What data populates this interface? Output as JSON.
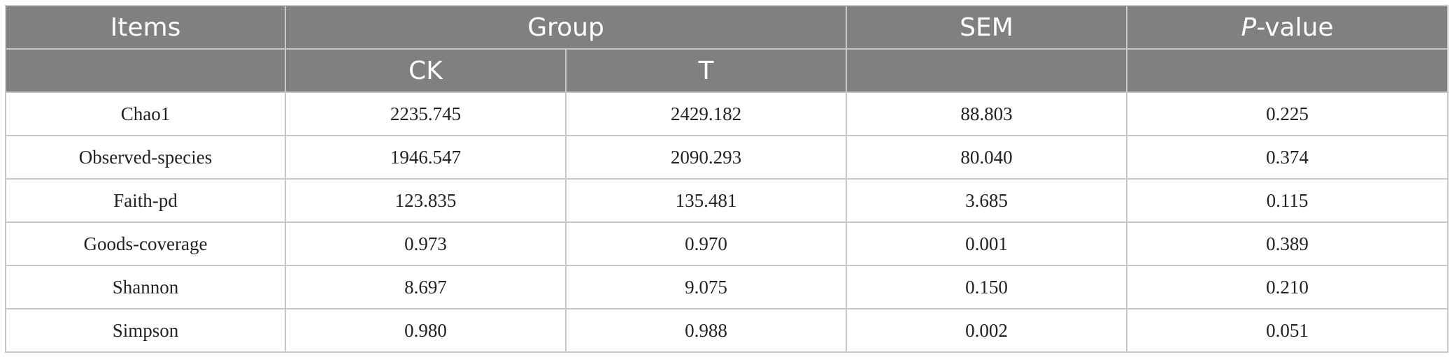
{
  "header": {
    "items": "Items",
    "group": "Group",
    "sem": "SEM",
    "p_italic": "P",
    "p_rest": "-value",
    "ck": "CK",
    "t": "T"
  },
  "rows": [
    {
      "item": "Chao1",
      "ck": "2235.745",
      "t": "2429.182",
      "sem": "88.803",
      "p": "0.225"
    },
    {
      "item": "Observed-species",
      "ck": "1946.547",
      "t": "2090.293",
      "sem": "80.040",
      "p": "0.374"
    },
    {
      "item": "Faith-pd",
      "ck": "123.835",
      "t": "135.481",
      "sem": "3.685",
      "p": "0.115"
    },
    {
      "item": "Goods-coverage",
      "ck": "0.973",
      "t": "0.970",
      "sem": "0.001",
      "p": "0.389"
    },
    {
      "item": "Shannon",
      "ck": "8.697",
      "t": "9.075",
      "sem": "0.150",
      "p": "0.210"
    },
    {
      "item": "Simpson",
      "ck": "0.980",
      "t": "0.988",
      "sem": "0.002",
      "p": "0.051"
    }
  ]
}
